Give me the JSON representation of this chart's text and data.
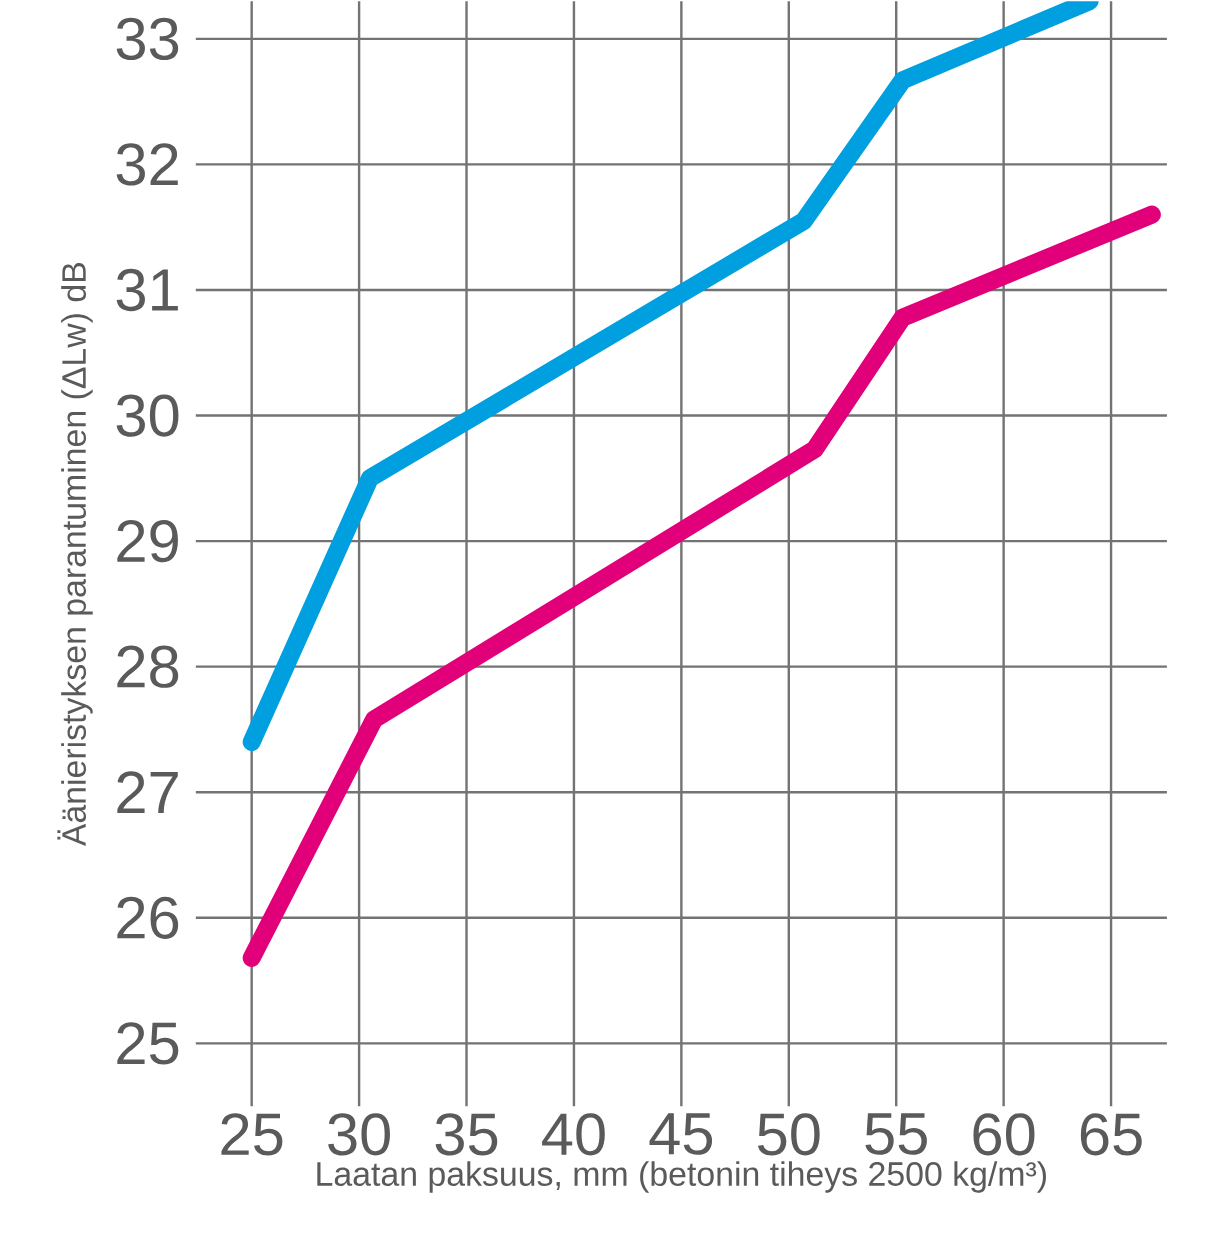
{
  "chart_data": {
    "type": "line",
    "xlabel": "Laatan paksuus, mm (betonin tiheys 2500 kg/m³)",
    "ylabel": "Äänieristyksen parantuminen (ΔLw) dB",
    "series": [
      {
        "color": "#009fe0",
        "x": [
          25,
          30.5,
          50.7,
          55.3,
          64
        ],
        "values": [
          27.4,
          29.5,
          31.55,
          32.67,
          33.3
        ]
      },
      {
        "color": "#e2007a",
        "x": [
          25,
          30.7,
          51.2,
          55.3,
          66.9
        ],
        "values": [
          25.68,
          27.58,
          29.73,
          30.78,
          31.6
        ]
      }
    ],
    "xlim": [
      22.4,
      67.6
    ],
    "ylim": [
      24.5,
      33.3
    ],
    "xticks": [
      25,
      30,
      35,
      40,
      45,
      50,
      55,
      60,
      65
    ],
    "yticks": [
      25,
      26,
      27,
      28,
      29,
      30,
      31,
      32,
      33
    ],
    "grid": true,
    "marker": "none"
  }
}
